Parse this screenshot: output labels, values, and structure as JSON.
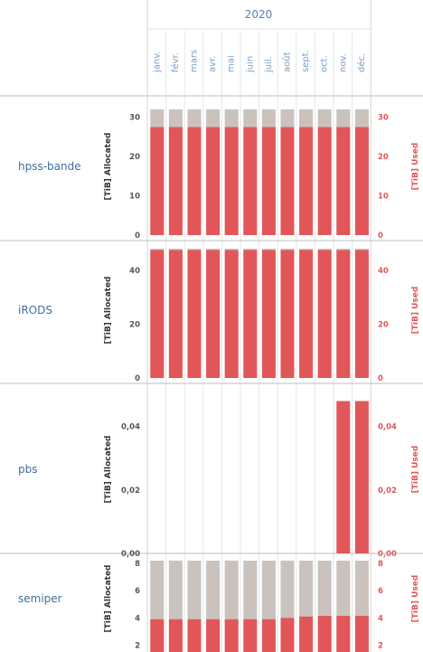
{
  "chart_data": {
    "type": "bar",
    "year": "2020",
    "months": [
      "janv.",
      "févr.",
      "mars",
      "avr.",
      "mai",
      "juin",
      "juil.",
      "août",
      "sept.",
      "oct.",
      "nov.",
      "déc."
    ],
    "left_axis_label": "[TiB] Allocated",
    "right_axis_label": "[TiB] Used",
    "colors": {
      "allocated": "#c9c2bd",
      "used": "#e15759",
      "header": "#5b84ad"
    },
    "panels": [
      {
        "name": "hpss-bande",
        "ylim": [
          0,
          32
        ],
        "ticks": [
          0,
          10,
          20,
          30
        ],
        "tick_labels": [
          "0",
          "10",
          "20",
          "30"
        ],
        "allocated": [
          32,
          32,
          32,
          32,
          32,
          32,
          32,
          32,
          32,
          32,
          32,
          32
        ],
        "used": [
          27.5,
          27.5,
          27.5,
          27.5,
          27.5,
          27.5,
          27.5,
          27.5,
          27.5,
          27.5,
          27.5,
          27.5
        ]
      },
      {
        "name": "iRODS",
        "ylim": [
          0,
          48
        ],
        "ticks": [
          0,
          20,
          40
        ],
        "tick_labels": [
          "0",
          "20",
          "40"
        ],
        "allocated": [
          48,
          48,
          48,
          48,
          48,
          48,
          48,
          48,
          48,
          48,
          48,
          48
        ],
        "used": [
          47.5,
          47.5,
          47.5,
          47.5,
          47.5,
          47.5,
          47.5,
          47.5,
          47.5,
          47.5,
          47.5,
          47.5
        ]
      },
      {
        "name": "pbs",
        "ylim": [
          0,
          0.049
        ],
        "ticks": [
          0,
          0.02,
          0.04
        ],
        "tick_labels": [
          "0,00",
          "0,02",
          "0,04"
        ],
        "allocated": [
          0,
          0,
          0,
          0,
          0,
          0,
          0,
          0,
          0,
          0,
          0,
          0
        ],
        "used": [
          0,
          0,
          0,
          0,
          0,
          0,
          0,
          0,
          0,
          0,
          0.048,
          0.048
        ]
      },
      {
        "name": "semiper",
        "ylim": [
          1.5,
          8.2
        ],
        "ticks": [
          2,
          4,
          6,
          8
        ],
        "tick_labels": [
          "2",
          "4",
          "6",
          "8"
        ],
        "allocated": [
          8.2,
          8.2,
          8.2,
          8.2,
          8.2,
          8.2,
          8.2,
          8.2,
          8.2,
          8.2,
          8.2,
          8.2
        ],
        "used": [
          3.9,
          3.9,
          3.9,
          3.9,
          3.9,
          3.9,
          3.9,
          4.0,
          4.1,
          4.15,
          4.15,
          4.15
        ]
      }
    ]
  }
}
